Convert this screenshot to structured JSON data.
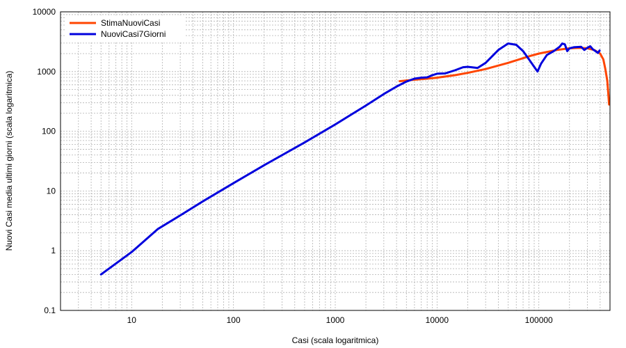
{
  "chart_data": {
    "type": "line",
    "xlabel": "Casi (scala logaritmica)",
    "ylabel": "Nuovi Casi media ultimi giorni (scala logaritmica)",
    "xscale": "log",
    "yscale": "log",
    "xlim": [
      2,
      500000
    ],
    "ylim": [
      0.1,
      10000
    ],
    "x_ticks": [
      {
        "value": 10,
        "label": "10"
      },
      {
        "value": 100,
        "label": "100"
      },
      {
        "value": 1000,
        "label": "1000"
      },
      {
        "value": 10000,
        "label": "10000"
      },
      {
        "value": 100000,
        "label": "100000"
      }
    ],
    "y_ticks": [
      {
        "value": 0.1,
        "label": "0.1"
      },
      {
        "value": 1,
        "label": "1"
      },
      {
        "value": 10,
        "label": "10"
      },
      {
        "value": 100,
        "label": "100"
      },
      {
        "value": 1000,
        "label": "1000"
      },
      {
        "value": 10000,
        "label": "10000"
      }
    ],
    "grid": true,
    "legend_position": "top-left",
    "series": [
      {
        "name": "StimaNuoviCasi",
        "color": "#ff4500",
        "points": [
          [
            4300,
            690
          ],
          [
            6000,
            730
          ],
          [
            8000,
            760
          ],
          [
            10000,
            790
          ],
          [
            15000,
            870
          ],
          [
            20000,
            950
          ],
          [
            30000,
            1100
          ],
          [
            50000,
            1400
          ],
          [
            80000,
            1800
          ],
          [
            100000,
            2000
          ],
          [
            150000,
            2300
          ],
          [
            200000,
            2450
          ],
          [
            250000,
            2500
          ],
          [
            300000,
            2450
          ],
          [
            350000,
            2300
          ],
          [
            400000,
            2000
          ],
          [
            430000,
            1600
          ],
          [
            450000,
            1100
          ],
          [
            470000,
            700
          ],
          [
            480000,
            450
          ],
          [
            490000,
            280
          ]
        ]
      },
      {
        "name": "NuoviCasi7Giorni",
        "color": "#0000dd",
        "points": [
          [
            5,
            0.4
          ],
          [
            10,
            0.95
          ],
          [
            18,
            2.3
          ],
          [
            30,
            3.9
          ],
          [
            50,
            6.7
          ],
          [
            100,
            13.5
          ],
          [
            200,
            27
          ],
          [
            500,
            65
          ],
          [
            1000,
            130
          ],
          [
            2000,
            270
          ],
          [
            3000,
            420
          ],
          [
            4000,
            560
          ],
          [
            5000,
            680
          ],
          [
            6000,
            760
          ],
          [
            7000,
            790
          ],
          [
            8000,
            800
          ],
          [
            9000,
            870
          ],
          [
            10000,
            920
          ],
          [
            12000,
            930
          ],
          [
            15000,
            1050
          ],
          [
            18000,
            1180
          ],
          [
            20000,
            1200
          ],
          [
            25000,
            1150
          ],
          [
            30000,
            1400
          ],
          [
            40000,
            2300
          ],
          [
            50000,
            2950
          ],
          [
            60000,
            2800
          ],
          [
            70000,
            2200
          ],
          [
            80000,
            1600
          ],
          [
            90000,
            1200
          ],
          [
            97000,
            1000
          ],
          [
            105000,
            1350
          ],
          [
            120000,
            1900
          ],
          [
            140000,
            2200
          ],
          [
            160000,
            2600
          ],
          [
            170000,
            2950
          ],
          [
            180000,
            2850
          ],
          [
            190000,
            2200
          ],
          [
            200000,
            2450
          ],
          [
            220000,
            2550
          ],
          [
            260000,
            2600
          ],
          [
            280000,
            2300
          ],
          [
            300000,
            2500
          ],
          [
            320000,
            2650
          ],
          [
            340000,
            2350
          ],
          [
            360000,
            2200
          ],
          [
            380000,
            2050
          ],
          [
            395000,
            2250
          ]
        ]
      }
    ]
  }
}
